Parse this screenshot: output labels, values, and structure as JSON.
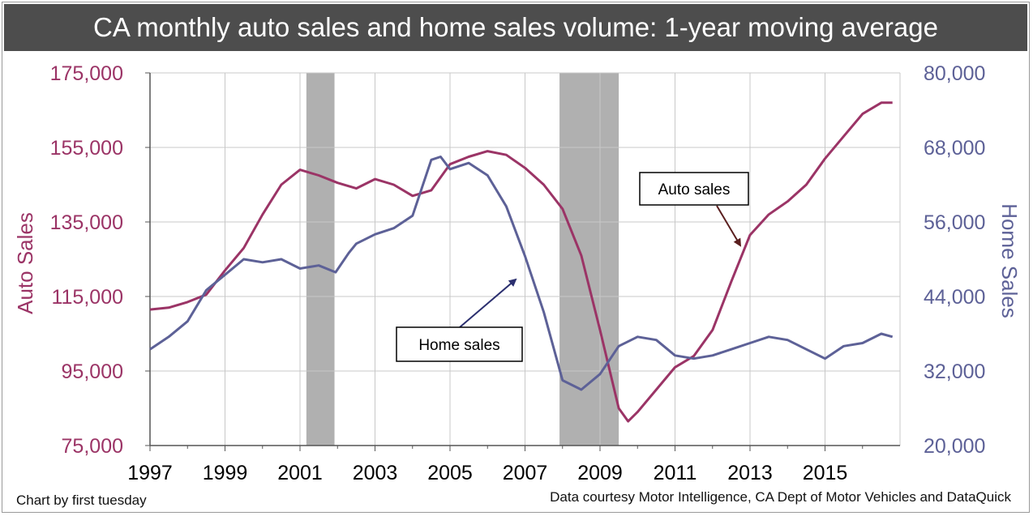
{
  "title": "CA monthly auto sales and home sales volume: 1-year moving average",
  "credit_left": "Chart by first tuesday",
  "credit_right": "Data courtesy Motor Intelligence, CA Dept of Motor Vehicles and DataQuick",
  "colors": {
    "auto": "#9b3466",
    "home": "#5d6197",
    "recession": "#b0b0b0",
    "grid": "#c8c8c8",
    "title_bg": "#4d4d4d"
  },
  "chart_data": {
    "type": "line",
    "title": "CA monthly auto sales and home sales volume: 1-year moving average",
    "x_ticks": [
      "1997",
      "1999",
      "2001",
      "2003",
      "2005",
      "2007",
      "2009",
      "2011",
      "2013",
      "2015"
    ],
    "xlim": [
      1997,
      2017
    ],
    "left_axis": {
      "label": "Auto Sales",
      "ylim": [
        75000,
        175000
      ],
      "ticks": [
        "75,000",
        "95,000",
        "115,000",
        "135,000",
        "155,000",
        "175,000"
      ]
    },
    "right_axis": {
      "label": "Home Sales",
      "ylim": [
        20000,
        80000
      ],
      "ticks": [
        "20,000",
        "32,000",
        "44,000",
        "56,000",
        "68,000",
        "80,000"
      ]
    },
    "grid": true,
    "recessions": [
      [
        2001.17,
        2001.92
      ],
      [
        2007.92,
        2009.5
      ]
    ],
    "series": [
      {
        "name": "Auto sales",
        "axis": "left",
        "points": [
          [
            1997.0,
            111500
          ],
          [
            1997.5,
            112000
          ],
          [
            1998.0,
            113500
          ],
          [
            1998.5,
            115500
          ],
          [
            1999.0,
            122000
          ],
          [
            1999.5,
            128000
          ],
          [
            2000.0,
            137000
          ],
          [
            2000.5,
            145000
          ],
          [
            2001.0,
            149000
          ],
          [
            2001.5,
            147500
          ],
          [
            2002.0,
            145500
          ],
          [
            2002.5,
            144000
          ],
          [
            2003.0,
            146500
          ],
          [
            2003.5,
            145000
          ],
          [
            2004.0,
            142000
          ],
          [
            2004.5,
            143500
          ],
          [
            2005.0,
            150500
          ],
          [
            2005.5,
            152500
          ],
          [
            2006.0,
            154000
          ],
          [
            2006.5,
            153000
          ],
          [
            2007.0,
            149500
          ],
          [
            2007.5,
            145000
          ],
          [
            2008.0,
            138500
          ],
          [
            2008.5,
            126000
          ],
          [
            2009.0,
            106000
          ],
          [
            2009.5,
            85000
          ],
          [
            2009.75,
            81500
          ],
          [
            2010.0,
            84000
          ],
          [
            2010.5,
            90000
          ],
          [
            2011.0,
            96000
          ],
          [
            2011.5,
            99000
          ],
          [
            2012.0,
            106000
          ],
          [
            2012.5,
            119000
          ],
          [
            2013.0,
            131500
          ],
          [
            2013.5,
            137000
          ],
          [
            2014.0,
            140500
          ],
          [
            2014.5,
            145000
          ],
          [
            2015.0,
            152000
          ],
          [
            2015.5,
            158000
          ],
          [
            2016.0,
            164000
          ],
          [
            2016.5,
            167000
          ],
          [
            2016.8,
            167000
          ]
        ]
      },
      {
        "name": "Home sales",
        "axis": "right",
        "points": [
          [
            1997.0,
            35500
          ],
          [
            1997.5,
            37500
          ],
          [
            1998.0,
            40000
          ],
          [
            1998.5,
            45000
          ],
          [
            1999.0,
            47500
          ],
          [
            1999.5,
            50000
          ],
          [
            2000.0,
            49500
          ],
          [
            2000.5,
            50000
          ],
          [
            2001.0,
            48500
          ],
          [
            2001.5,
            49000
          ],
          [
            2001.95,
            47900
          ],
          [
            2002.3,
            51000
          ],
          [
            2002.5,
            52500
          ],
          [
            2003.0,
            54000
          ],
          [
            2003.5,
            55000
          ],
          [
            2004.0,
            57000
          ],
          [
            2004.5,
            66000
          ],
          [
            2004.75,
            66500
          ],
          [
            2005.0,
            64500
          ],
          [
            2005.5,
            65500
          ],
          [
            2006.0,
            63500
          ],
          [
            2006.5,
            58500
          ],
          [
            2007.0,
            50500
          ],
          [
            2007.5,
            41500
          ],
          [
            2008.0,
            30500
          ],
          [
            2008.5,
            29000
          ],
          [
            2009.0,
            31500
          ],
          [
            2009.5,
            36000
          ],
          [
            2010.0,
            37500
          ],
          [
            2010.5,
            37000
          ],
          [
            2011.0,
            34500
          ],
          [
            2011.5,
            34000
          ],
          [
            2012.0,
            34500
          ],
          [
            2012.5,
            35500
          ],
          [
            2013.0,
            36500
          ],
          [
            2013.5,
            37500
          ],
          [
            2014.0,
            37000
          ],
          [
            2014.5,
            35500
          ],
          [
            2015.0,
            34000
          ],
          [
            2015.5,
            36000
          ],
          [
            2016.0,
            36500
          ],
          [
            2016.5,
            38000
          ],
          [
            2016.8,
            37500
          ]
        ]
      }
    ],
    "annotations": [
      {
        "text": "Auto sales",
        "series": "Auto sales"
      },
      {
        "text": "Home sales",
        "series": "Home sales"
      }
    ]
  }
}
